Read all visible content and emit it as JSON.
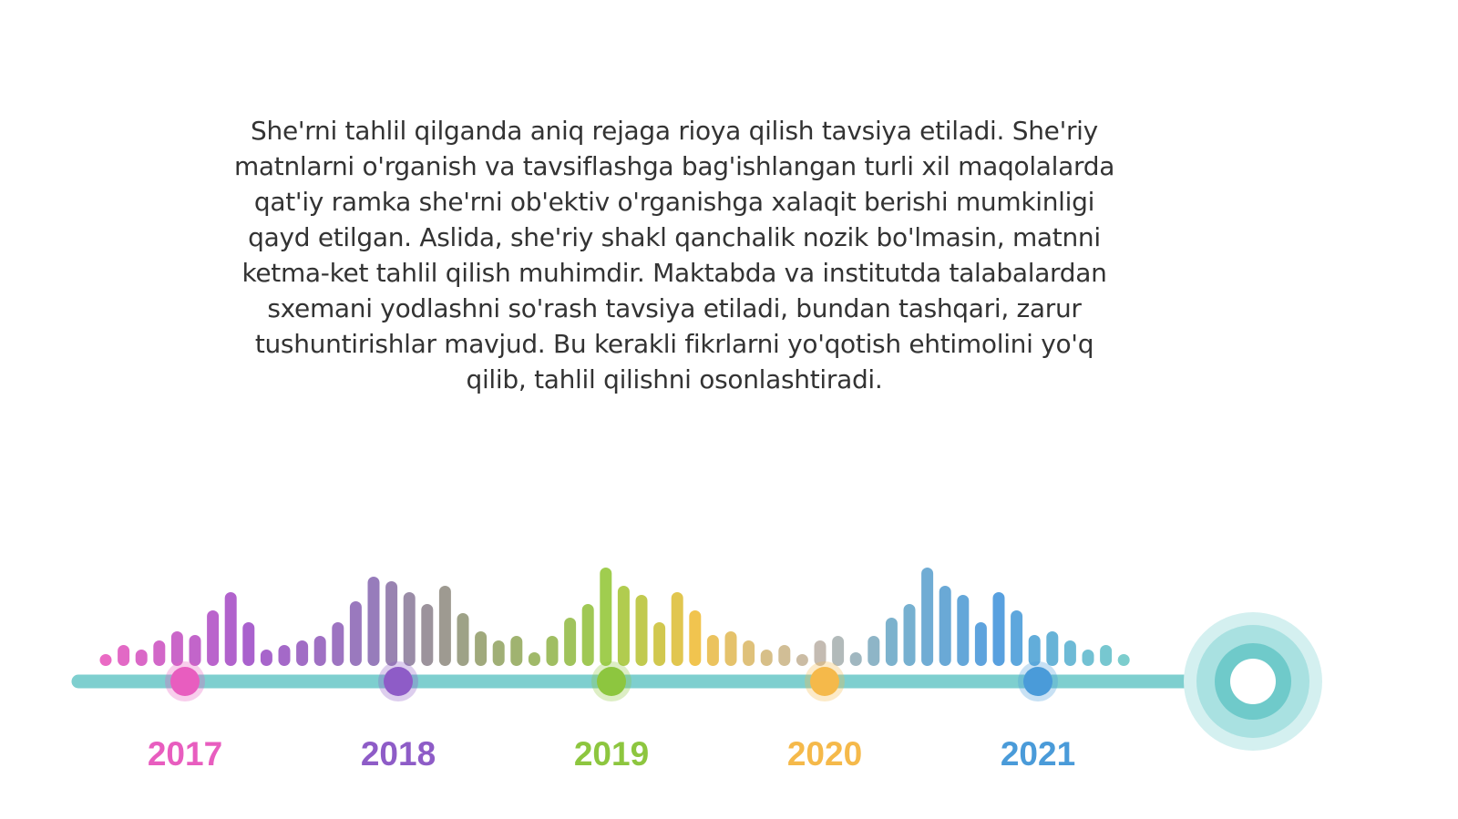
{
  "paragraph": {
    "lines": [
      "She'rni tahlil qilganda aniq rejaga rioya qilish tavsiya etiladi. She'riy",
      "matnlarni o'rganish va tavsiflashga bag'ishlangan turli xil maqolalarda",
      "qat'iy ramka she'rni ob'ektiv o'rganishga xalaqit berishi mumkinligi",
      "qayd etilgan. Aslida, she'riy shakl qanchalik nozik bo'lmasin, matnni",
      "ketma-ket tahlil qilish muhimdir. Maktabda va institutda talabalardan",
      "sxemani yodlashni so'rash tavsiya etiladi, bundan tashqari, zarur",
      "tushuntirishlar mavjud. Bu kerakli fikrlarni yo'qotish ehtimolini yo'q",
      "qilib, tahlil qilishni osonlashtiradi."
    ]
  },
  "timeline": {
    "years": [
      "2017",
      "2018",
      "2019",
      "2020",
      "2021"
    ]
  }
}
